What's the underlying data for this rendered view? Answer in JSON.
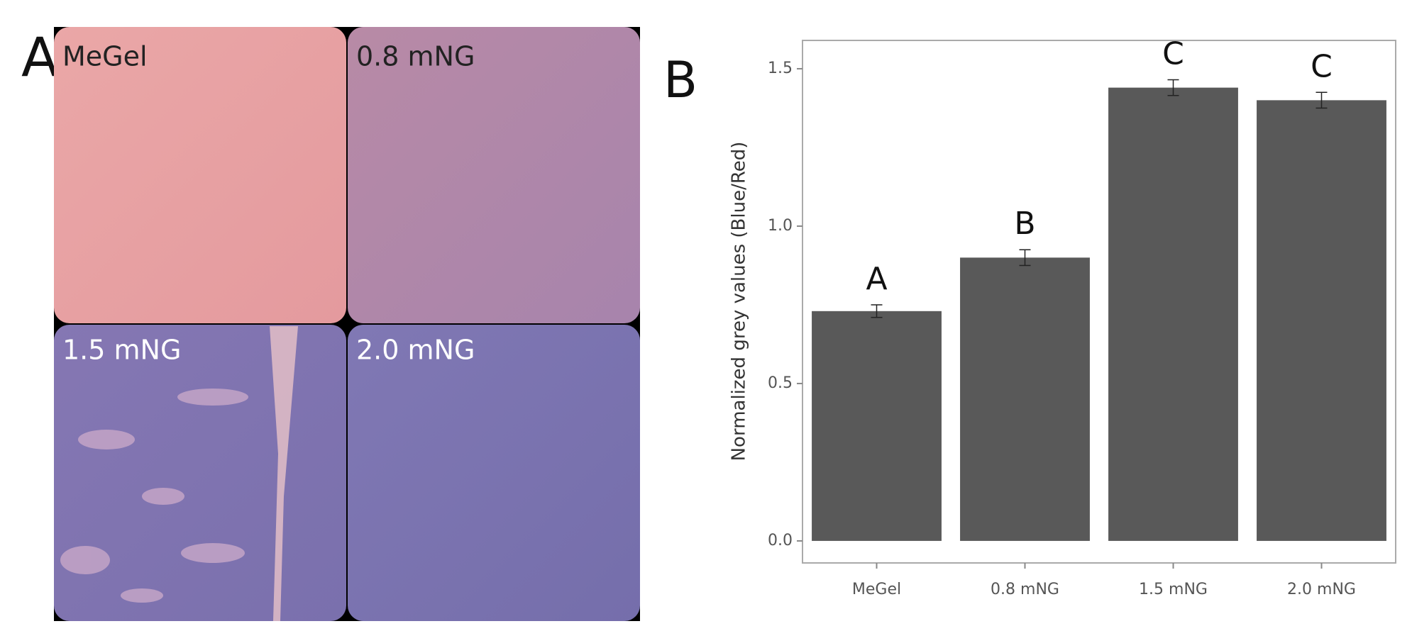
{
  "panel_a": {
    "label": "A",
    "image_labels": [
      "MeGel",
      "0.8 mNG",
      "1.5 mNG",
      "2.0 mNG"
    ]
  },
  "chart_data": {
    "type": "bar",
    "panel_label": "B",
    "ylabel": "Normalized grey values (Blue/Red)",
    "categories": [
      "MeGel",
      "0.8 mNG",
      "1.5 mNG",
      "2.0 mNG"
    ],
    "values": [
      0.73,
      0.9,
      1.44,
      1.4
    ],
    "errors": [
      0.02,
      0.025,
      0.025,
      0.025
    ],
    "annotations": [
      "A",
      "B",
      "C",
      "C"
    ],
    "color": "#595959",
    "ylim": [
      -0.07,
      1.59
    ],
    "yticks": [
      {
        "value": 0,
        "label": "0.0"
      },
      0.5,
      {
        "value": 1,
        "label": "1.0"
      },
      1.5
    ],
    "grid": false
  }
}
